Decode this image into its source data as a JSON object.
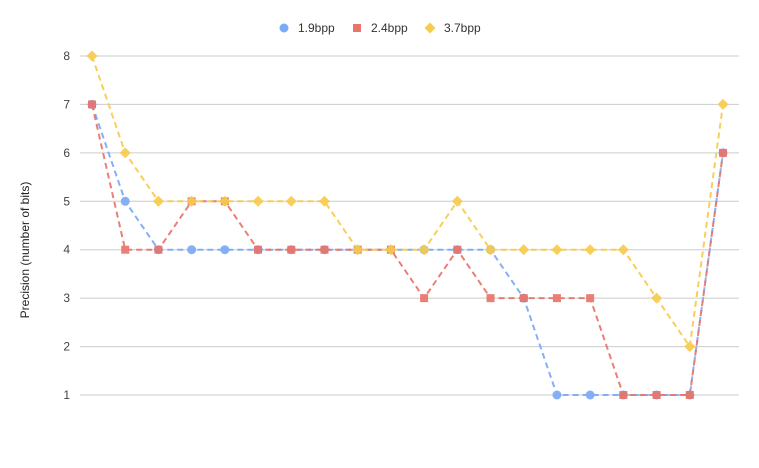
{
  "chart_data": {
    "type": "line",
    "title": "",
    "xlabel": "",
    "ylabel": "Precision (number of bits)",
    "ylim": [
      0.5,
      8.5
    ],
    "yticks": [
      1,
      2,
      3,
      4,
      5,
      6,
      7,
      8
    ],
    "grid": true,
    "legend_position": "top-center",
    "x": [
      1,
      2,
      3,
      4,
      5,
      6,
      7,
      8,
      9,
      10,
      11,
      12,
      13,
      14,
      15,
      16,
      17,
      18,
      19,
      20
    ],
    "series": [
      {
        "name": "1.9bpp",
        "color": "#7baaf7",
        "marker": "circle",
        "values": [
          7,
          5,
          4,
          4,
          4,
          4,
          4,
          4,
          4,
          4,
          4,
          4,
          4,
          3,
          1,
          1,
          1,
          1,
          1,
          6
        ]
      },
      {
        "name": "2.4bpp",
        "color": "#e8756b",
        "marker": "square",
        "values": [
          7,
          4,
          4,
          5,
          5,
          4,
          4,
          4,
          4,
          4,
          3,
          4,
          3,
          3,
          3,
          3,
          1,
          1,
          1,
          6
        ]
      },
      {
        "name": "3.7bpp",
        "color": "#f7cb4d",
        "marker": "diamond",
        "values": [
          8,
          6,
          5,
          5,
          5,
          5,
          5,
          5,
          4,
          4,
          4,
          5,
          4,
          4,
          4,
          4,
          4,
          3,
          2,
          7
        ]
      }
    ]
  }
}
